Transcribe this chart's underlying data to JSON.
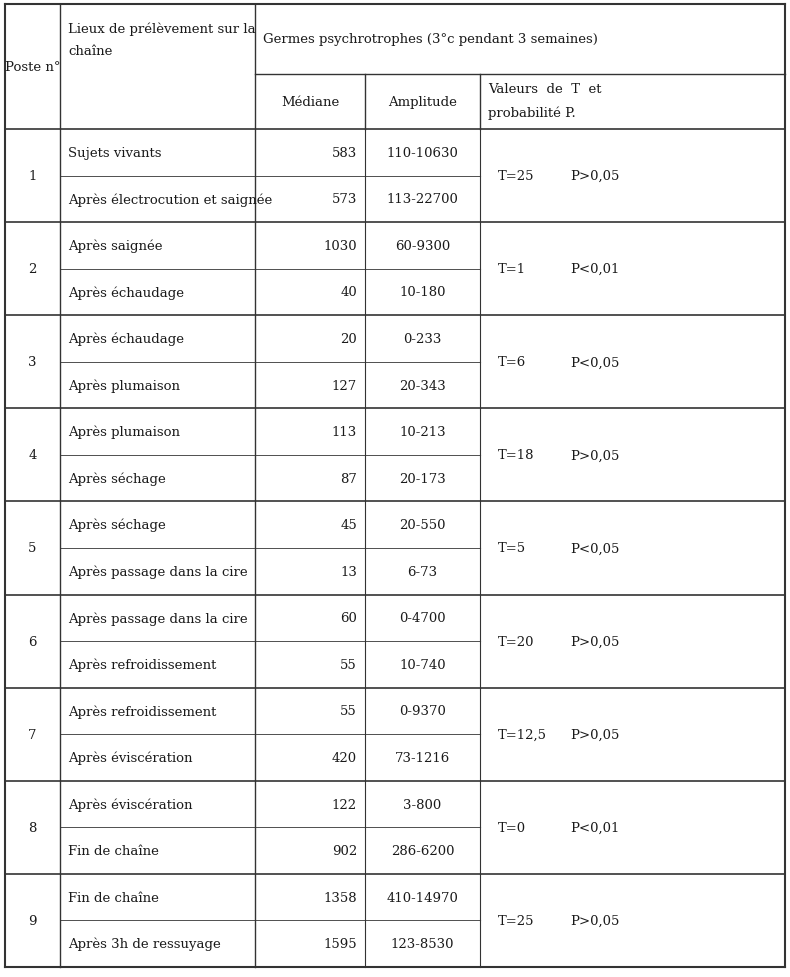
{
  "merged_header": "Germes psychrotrophes (3°c pendant 3 semaines)",
  "sub_headers": [
    "Médiane",
    "Amplitude",
    "Valeurs de T et\nprobabilité P."
  ],
  "rows": [
    {
      "poste": "1",
      "lieu": "Sujets vivants",
      "mediane": "583",
      "amplitude": "110-10630",
      "t": "T=25",
      "p": "P>0,05"
    },
    {
      "poste": "",
      "lieu": "Après électrocution et saignée",
      "mediane": "573",
      "amplitude": "113-22700",
      "t": "",
      "p": ""
    },
    {
      "poste": "2",
      "lieu": "Après saignée",
      "mediane": "1030",
      "amplitude": "60-9300",
      "t": "T=1",
      "p": "P<0,01"
    },
    {
      "poste": "",
      "lieu": "Après échaudage",
      "mediane": "40",
      "amplitude": "10-180",
      "t": "",
      "p": ""
    },
    {
      "poste": "3",
      "lieu": "Après échaudage",
      "mediane": "20",
      "amplitude": "0-233",
      "t": "T=6",
      "p": "P<0,05"
    },
    {
      "poste": "",
      "lieu": "Après plumaison",
      "mediane": "127",
      "amplitude": "20-343",
      "t": "",
      "p": ""
    },
    {
      "poste": "4",
      "lieu": "Après plumaison",
      "mediane": "113",
      "amplitude": "10-213",
      "t": "T=18",
      "p": "P>0,05"
    },
    {
      "poste": "",
      "lieu": "Après séchage",
      "mediane": "87",
      "amplitude": "20-173",
      "t": "",
      "p": ""
    },
    {
      "poste": "5",
      "lieu": "Après séchage",
      "mediane": "45",
      "amplitude": "20-550",
      "t": "T=5",
      "p": "P<0,05"
    },
    {
      "poste": "",
      "lieu": "Après passage dans la cire",
      "mediane": "13",
      "amplitude": "6-73",
      "t": "",
      "p": ""
    },
    {
      "poste": "6",
      "lieu": "Après passage dans la cire",
      "mediane": "60",
      "amplitude": "0-4700",
      "t": "T=20",
      "p": "P>0,05"
    },
    {
      "poste": "",
      "lieu": "Après refroidissement",
      "mediane": "55",
      "amplitude": "10-740",
      "t": "",
      "p": ""
    },
    {
      "poste": "7",
      "lieu": "Après refroidissement",
      "mediane": "55",
      "amplitude": "0-9370",
      "t": "T=12,5",
      "p": "P>0,05"
    },
    {
      "poste": "",
      "lieu": "Après éviscération",
      "mediane": "420",
      "amplitude": "73-1216",
      "t": "",
      "p": ""
    },
    {
      "poste": "8",
      "lieu": "Après éviscération",
      "mediane": "122",
      "amplitude": "3-800",
      "t": "T=0",
      "p": "P<0,01"
    },
    {
      "poste": "",
      "lieu": "Fin de chaîne",
      "mediane": "902",
      "amplitude": "286-6200",
      "t": "",
      "p": ""
    },
    {
      "poste": "9",
      "lieu": "Fin de chaîne",
      "mediane": "1358",
      "amplitude": "410-14970",
      "t": "T=25",
      "p": "P>0,05"
    },
    {
      "poste": "",
      "lieu": "Après 3h de ressuyage",
      "mediane": "1595",
      "amplitude": "123-8530",
      "t": "",
      "p": ""
    }
  ],
  "font_size": 9.5,
  "bg_color": "#ffffff",
  "text_color": "#1a1a1a",
  "line_color": "#333333"
}
